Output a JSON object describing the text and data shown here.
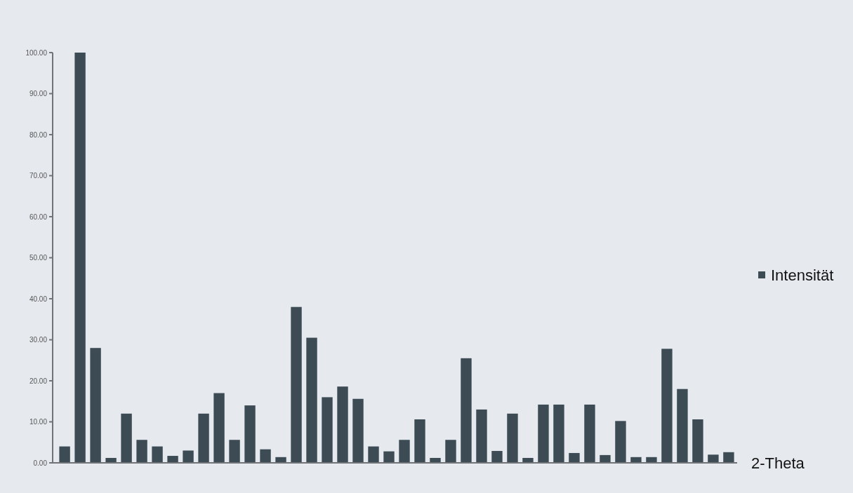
{
  "chart_data": {
    "type": "bar",
    "xlabel": "2-Theta",
    "categories": [
      null,
      null,
      null,
      null,
      null,
      null,
      null,
      null,
      null,
      null,
      null,
      null,
      null,
      null,
      null,
      null,
      null,
      null,
      null,
      null,
      null,
      null,
      null,
      null,
      null,
      null,
      null,
      null,
      null,
      null,
      null,
      null,
      null,
      null,
      null,
      null,
      null,
      null,
      null,
      null,
      null,
      null,
      null,
      null
    ],
    "series": [
      {
        "name": "Intensität",
        "color": "#3d4b55",
        "values": [
          4,
          100,
          28,
          1.2,
          12,
          5.6,
          4,
          1.7,
          3,
          12,
          17,
          5.6,
          14,
          3.3,
          1.4,
          38,
          30.5,
          16,
          18.6,
          15.6,
          4,
          2.8,
          5.6,
          10.6,
          1.2,
          5.6,
          25.5,
          13,
          2.9,
          12,
          1.2,
          14.2,
          14.2,
          2.4,
          14.2,
          1.9,
          10.2,
          1.4,
          1.4,
          27.8,
          18,
          10.6,
          2,
          2.6
        ]
      }
    ],
    "ylim": [
      0,
      100
    ],
    "yticks": [
      {
        "value": 0,
        "label": "0.00"
      },
      {
        "value": 10,
        "label": "10.00"
      },
      {
        "value": 20,
        "label": "20.00"
      },
      {
        "value": 30,
        "label": "30.00"
      },
      {
        "value": 40,
        "label": "40.00"
      },
      {
        "value": 50,
        "label": "50.00"
      },
      {
        "value": 60,
        "label": "60.00"
      },
      {
        "value": 70,
        "label": "70.00"
      },
      {
        "value": 80,
        "label": "80.00"
      },
      {
        "value": 90,
        "label": "90.00"
      },
      {
        "value": 100,
        "label": "100.00"
      }
    ],
    "grid": false,
    "legend": "right"
  }
}
